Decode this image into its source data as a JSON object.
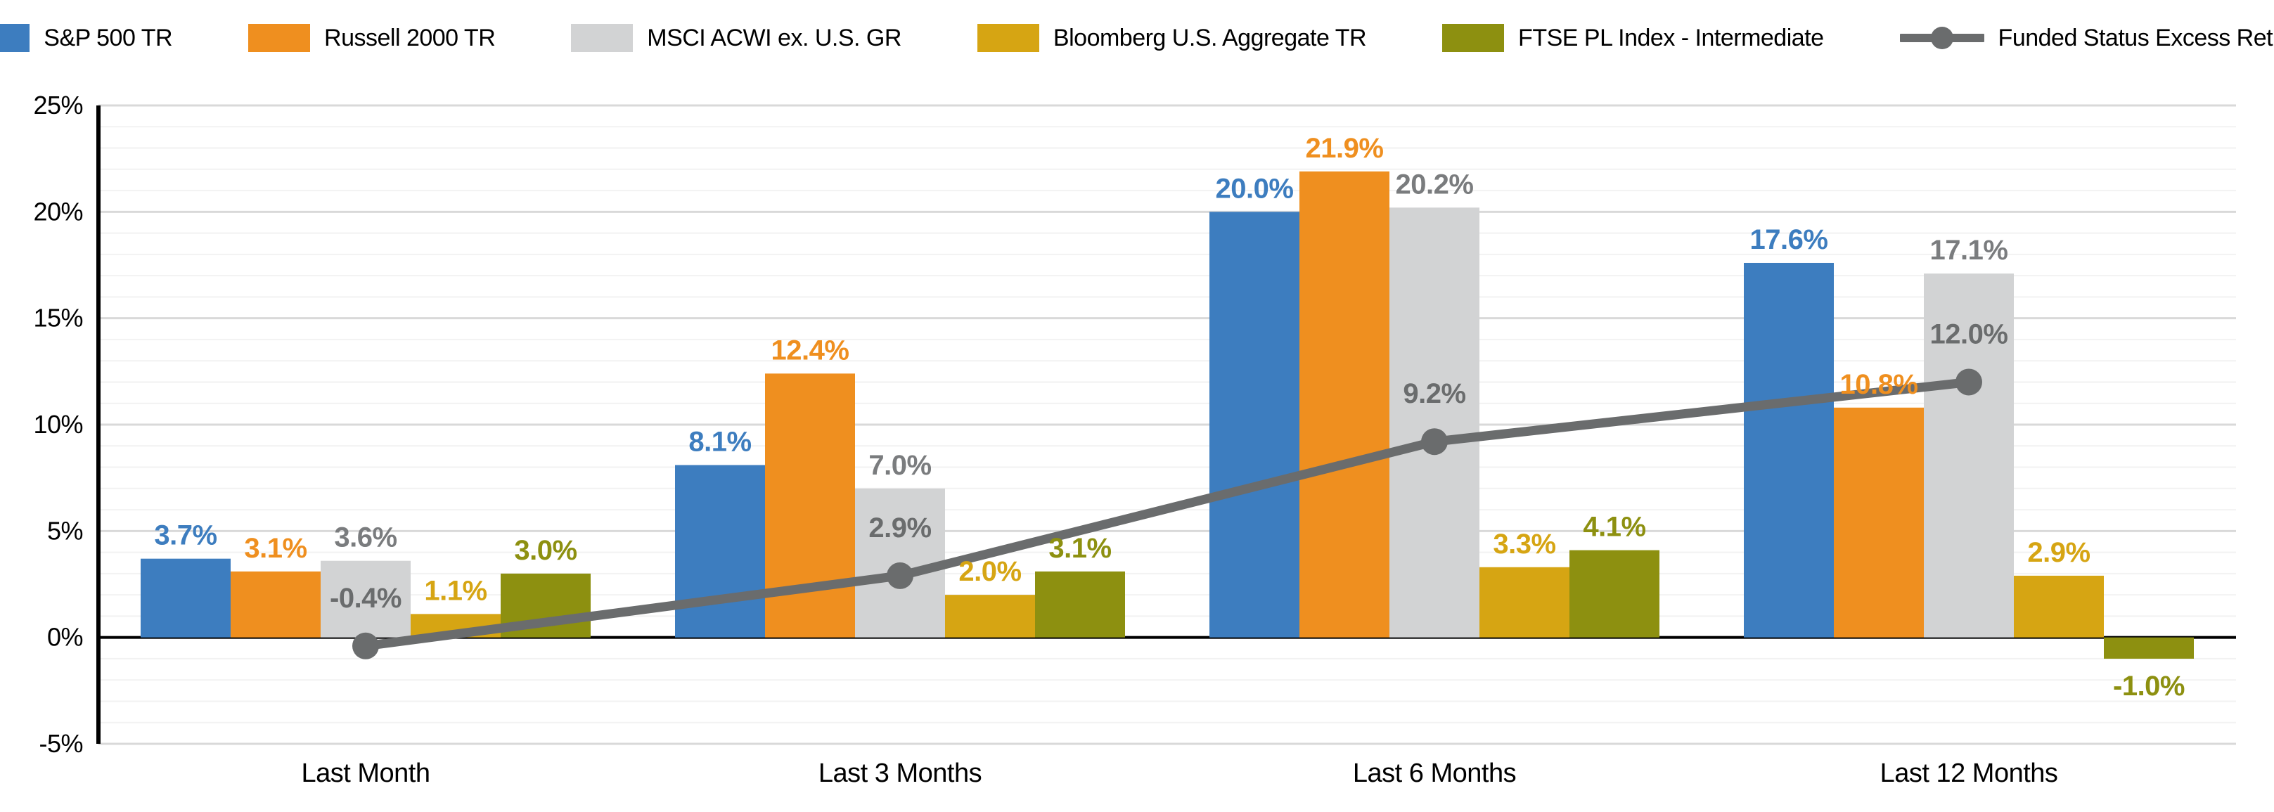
{
  "chart_data": {
    "type": "bar",
    "subtype": "grouped-bars-with-line-overlay",
    "categories": [
      "Last Month",
      "Last 3 Months",
      "Last 6 Months",
      "Last 12 Months"
    ],
    "series": [
      {
        "name": "S&P 500 TR",
        "type": "bar",
        "color": "#3D7DBF",
        "label_color": "#3D7DBF",
        "values": [
          3.7,
          8.1,
          20.0,
          17.6
        ]
      },
      {
        "name": "Russell 2000 TR",
        "type": "bar",
        "color": "#EF8F1F",
        "label_color": "#EF8F1F",
        "values": [
          3.1,
          12.4,
          21.9,
          10.8
        ]
      },
      {
        "name": "MSCI ACWI ex. U.S. GR",
        "type": "bar",
        "color": "#D2D3D4",
        "label_color": "#7A7C7E",
        "values": [
          3.6,
          7.0,
          20.2,
          17.1
        ]
      },
      {
        "name": "Bloomberg U.S. Aggregate TR",
        "type": "bar",
        "color": "#D6A513",
        "label_color": "#D6A513",
        "values": [
          1.1,
          2.0,
          3.3,
          2.9
        ]
      },
      {
        "name": "FTSE PL Index - Intermediate",
        "type": "bar",
        "color": "#8D9010",
        "label_color": "#8D9010",
        "values": [
          3.0,
          3.1,
          4.1,
          -1.0
        ]
      },
      {
        "name": "Funded Status Excess Return",
        "type": "line",
        "color": "#6A6C6D",
        "label_color": "#6A6C6D",
        "values": [
          -0.4,
          2.9,
          9.2,
          12.0
        ]
      }
    ],
    "ylim": [
      -5,
      25
    ],
    "y_major_step": 5,
    "y_minor_step": 1,
    "y_tick_labels": [
      "25%",
      "20%",
      "15%",
      "10%",
      "5%",
      "0%",
      "-5%"
    ],
    "value_suffix": "%",
    "value_decimals": 1,
    "grid": true,
    "legend_position": "top",
    "colors": {
      "axis_line": "#000000",
      "zero_line": "#000000",
      "major_gridline": "#D9D9D9",
      "minor_gridline": "#F2F2F2",
      "tick_label": "#000000",
      "category_label": "#000000"
    }
  }
}
